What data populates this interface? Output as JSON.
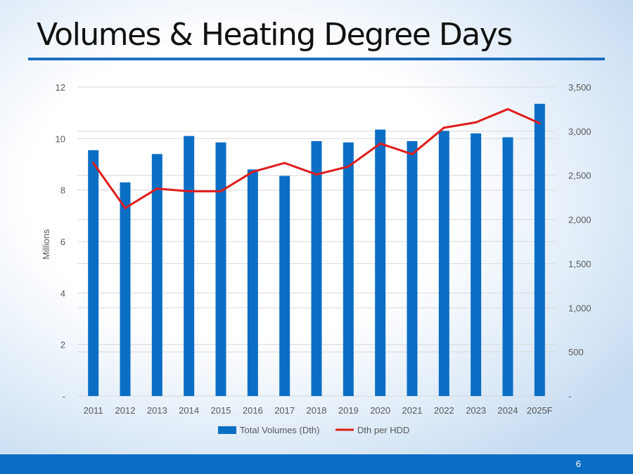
{
  "slide": {
    "title": "Volumes & Heating Degree Days",
    "page_number": "6"
  },
  "colors": {
    "bar": "#0b6ec5",
    "line": "#e01b1b",
    "grid": "#d9d9d9",
    "footer": "#0b6ec5"
  },
  "chart_data": {
    "type": "bar",
    "categories": [
      "2011",
      "2012",
      "2013",
      "2014",
      "2015",
      "2016",
      "2017",
      "2018",
      "2019",
      "2020",
      "2021",
      "2022",
      "2023",
      "2024",
      "2025F"
    ],
    "series": [
      {
        "name": "Total Volumes (Dth)",
        "type": "bar",
        "axis": "left",
        "values": [
          9.55,
          8.3,
          9.4,
          10.1,
          9.85,
          8.8,
          8.55,
          9.9,
          9.85,
          10.35,
          9.9,
          10.3,
          10.2,
          10.05,
          11.35
        ]
      },
      {
        "name": "Dth per HDD",
        "type": "line",
        "axis": "right",
        "values": [
          2640,
          2130,
          2350,
          2320,
          2320,
          2540,
          2640,
          2510,
          2600,
          2860,
          2740,
          3040,
          3100,
          3250,
          3090
        ]
      }
    ],
    "ylabel": "Millions",
    "ylim": [
      0,
      12
    ],
    "y_ticks": [
      "-",
      "2",
      "4",
      "6",
      "8",
      "10",
      "12"
    ],
    "y2lim": [
      0,
      3500
    ],
    "y2_ticks": [
      "-",
      "500",
      "1,000",
      "1,500",
      "2,000",
      "2,500",
      "3,000",
      "3,500"
    ],
    "grid": true,
    "legend_position": "bottom"
  }
}
